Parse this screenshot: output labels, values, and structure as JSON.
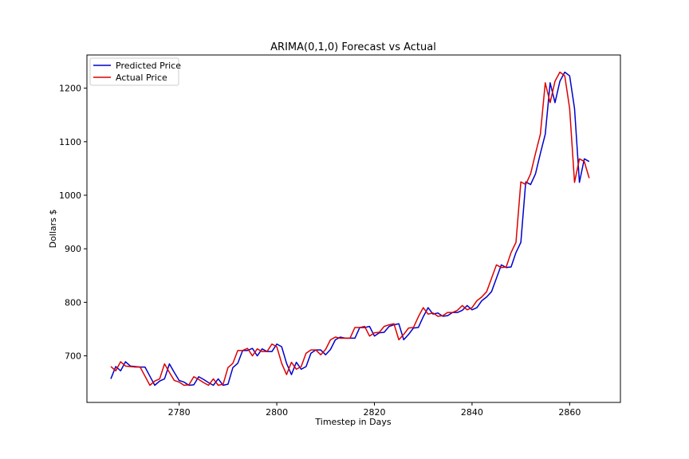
{
  "chart_data": {
    "type": "line",
    "title": "ARIMA(0,1,0) Forecast vs Actual",
    "xlabel": "Timestep in Days",
    "ylabel": "Dollars $",
    "xlim": [
      2761.1,
      2870.4
    ],
    "ylim": [
      613,
      1262
    ],
    "xticks": [
      2780,
      2800,
      2820,
      2840,
      2860
    ],
    "yticks": [
      700,
      800,
      900,
      1000,
      1100,
      1200
    ],
    "grid": false,
    "legend_position": "top-left",
    "x_start": 2766,
    "series": [
      {
        "name": "Predicted Price",
        "color": "#0000cc",
        "values": [
          657,
          680,
          672,
          689,
          681,
          680,
          679,
          679,
          662,
          645,
          653,
          657,
          685,
          669,
          654,
          651,
          645,
          646,
          661,
          656,
          650,
          645,
          657,
          645,
          647,
          678,
          686,
          710,
          710,
          714,
          700,
          713,
          708,
          708,
          722,
          717,
          686,
          665,
          688,
          675,
          680,
          705,
          711,
          711,
          702,
          712,
          730,
          735,
          733,
          733,
          733,
          753,
          753,
          755,
          737,
          743,
          744,
          755,
          758,
          760,
          730,
          740,
          752,
          753,
          773,
          790,
          778,
          780,
          774,
          775,
          781,
          781,
          785,
          794,
          786,
          790,
          803,
          810,
          820,
          845,
          870,
          865,
          866,
          893,
          912,
          1025,
          1020,
          1040,
          1078,
          1114,
          1210,
          1173,
          1213,
          1230,
          1223,
          1162,
          1024,
          1068,
          1063
        ]
      },
      {
        "name": "Actual Price",
        "color": "#dd0000",
        "values": [
          680,
          672,
          689,
          681,
          680,
          679,
          679,
          662,
          645,
          653,
          657,
          685,
          669,
          654,
          651,
          645,
          646,
          661,
          656,
          650,
          645,
          657,
          645,
          647,
          678,
          686,
          710,
          710,
          714,
          700,
          713,
          708,
          708,
          722,
          717,
          686,
          665,
          688,
          675,
          680,
          705,
          711,
          711,
          702,
          712,
          730,
          735,
          733,
          733,
          733,
          753,
          753,
          755,
          737,
          743,
          744,
          755,
          758,
          760,
          730,
          740,
          752,
          753,
          773,
          790,
          778,
          780,
          774,
          775,
          781,
          781,
          785,
          794,
          786,
          790,
          803,
          810,
          820,
          845,
          870,
          865,
          866,
          893,
          912,
          1025,
          1020,
          1040,
          1078,
          1114,
          1210,
          1173,
          1213,
          1230,
          1223,
          1162,
          1024,
          1068,
          1063,
          1032
        ]
      }
    ]
  }
}
